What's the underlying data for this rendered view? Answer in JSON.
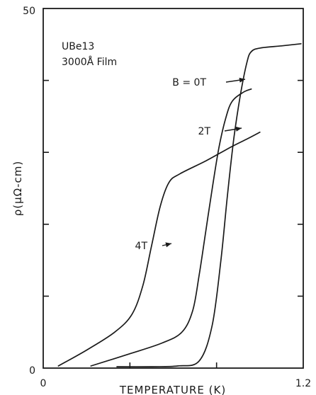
{
  "chart_data": {
    "type": "line",
    "title": "",
    "xlabel": "TEMPERATURE (K)",
    "ylabel": "ρ(μΩ-cm)",
    "xlim": [
      0,
      1.2
    ],
    "ylim": [
      0,
      50
    ],
    "x_tick_labels": [
      "0",
      "1.2"
    ],
    "y_tick_labels": [
      "0",
      "50"
    ],
    "grid": false,
    "annotations": [
      "UBe13",
      "3000Å Film"
    ],
    "series": [
      {
        "name": "B = 0T",
        "label": "B = 0T",
        "points": [
          [
            0.34,
            0.2
          ],
          [
            0.5,
            0.2
          ],
          [
            0.62,
            0.3
          ],
          [
            0.72,
            1.0
          ],
          [
            0.78,
            6.0
          ],
          [
            0.82,
            15.0
          ],
          [
            0.85,
            24.0
          ],
          [
            0.88,
            32.0
          ],
          [
            0.91,
            38.0
          ],
          [
            0.94,
            42.5
          ],
          [
            0.96,
            44.0
          ],
          [
            1.0,
            44.5
          ],
          [
            1.1,
            44.8
          ],
          [
            1.19,
            45.1
          ]
        ]
      },
      {
        "name": "2T",
        "label": "2T",
        "points": [
          [
            0.22,
            0.3
          ],
          [
            0.4,
            2.0
          ],
          [
            0.55,
            3.5
          ],
          [
            0.64,
            5.0
          ],
          [
            0.69,
            8.0
          ],
          [
            0.72,
            13.0
          ],
          [
            0.75,
            19.0
          ],
          [
            0.78,
            25.0
          ],
          [
            0.81,
            30.5
          ],
          [
            0.84,
            34.5
          ],
          [
            0.87,
            37.0
          ],
          [
            0.92,
            38.3
          ],
          [
            0.96,
            38.8
          ]
        ]
      },
      {
        "name": "4T",
        "label": "4T",
        "points": [
          [
            0.07,
            0.3
          ],
          [
            0.2,
            2.5
          ],
          [
            0.33,
            5.0
          ],
          [
            0.41,
            7.5
          ],
          [
            0.46,
            11.5
          ],
          [
            0.5,
            17.0
          ],
          [
            0.54,
            22.5
          ],
          [
            0.58,
            25.8
          ],
          [
            0.63,
            27.0
          ],
          [
            0.75,
            28.8
          ],
          [
            0.87,
            30.8
          ],
          [
            0.95,
            32.0
          ],
          [
            1.0,
            32.8
          ]
        ]
      }
    ]
  }
}
